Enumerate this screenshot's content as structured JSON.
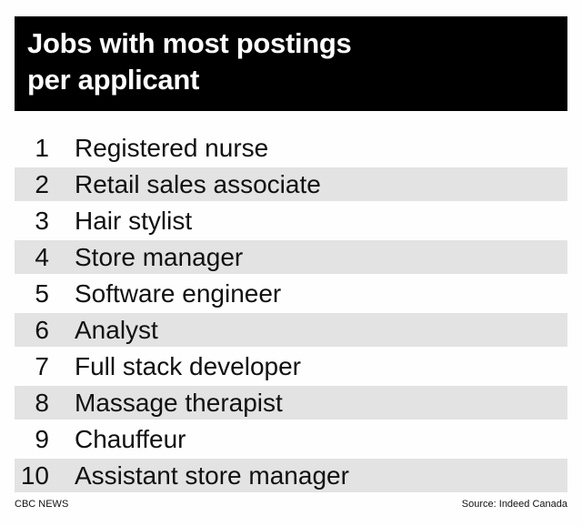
{
  "header": {
    "title_line1": "Jobs with most postings",
    "title_line2": "per applicant"
  },
  "items": [
    {
      "rank": "1",
      "label": "Registered nurse"
    },
    {
      "rank": "2",
      "label": "Retail sales associate"
    },
    {
      "rank": "3",
      "label": "Hair stylist"
    },
    {
      "rank": "4",
      "label": "Store manager"
    },
    {
      "rank": "5",
      "label": "Software engineer"
    },
    {
      "rank": "6",
      "label": "Analyst"
    },
    {
      "rank": "7",
      "label": "Full stack developer"
    },
    {
      "rank": "8",
      "label": "Massage therapist"
    },
    {
      "rank": "9",
      "label": "Chauffeur"
    },
    {
      "rank": "10",
      "label": "Assistant store manager"
    }
  ],
  "footer": {
    "credit": "CBC NEWS",
    "source": "Source: Indeed Canada"
  },
  "colors": {
    "header_bg": "#000000",
    "alt_row": "#e3e3e3"
  }
}
